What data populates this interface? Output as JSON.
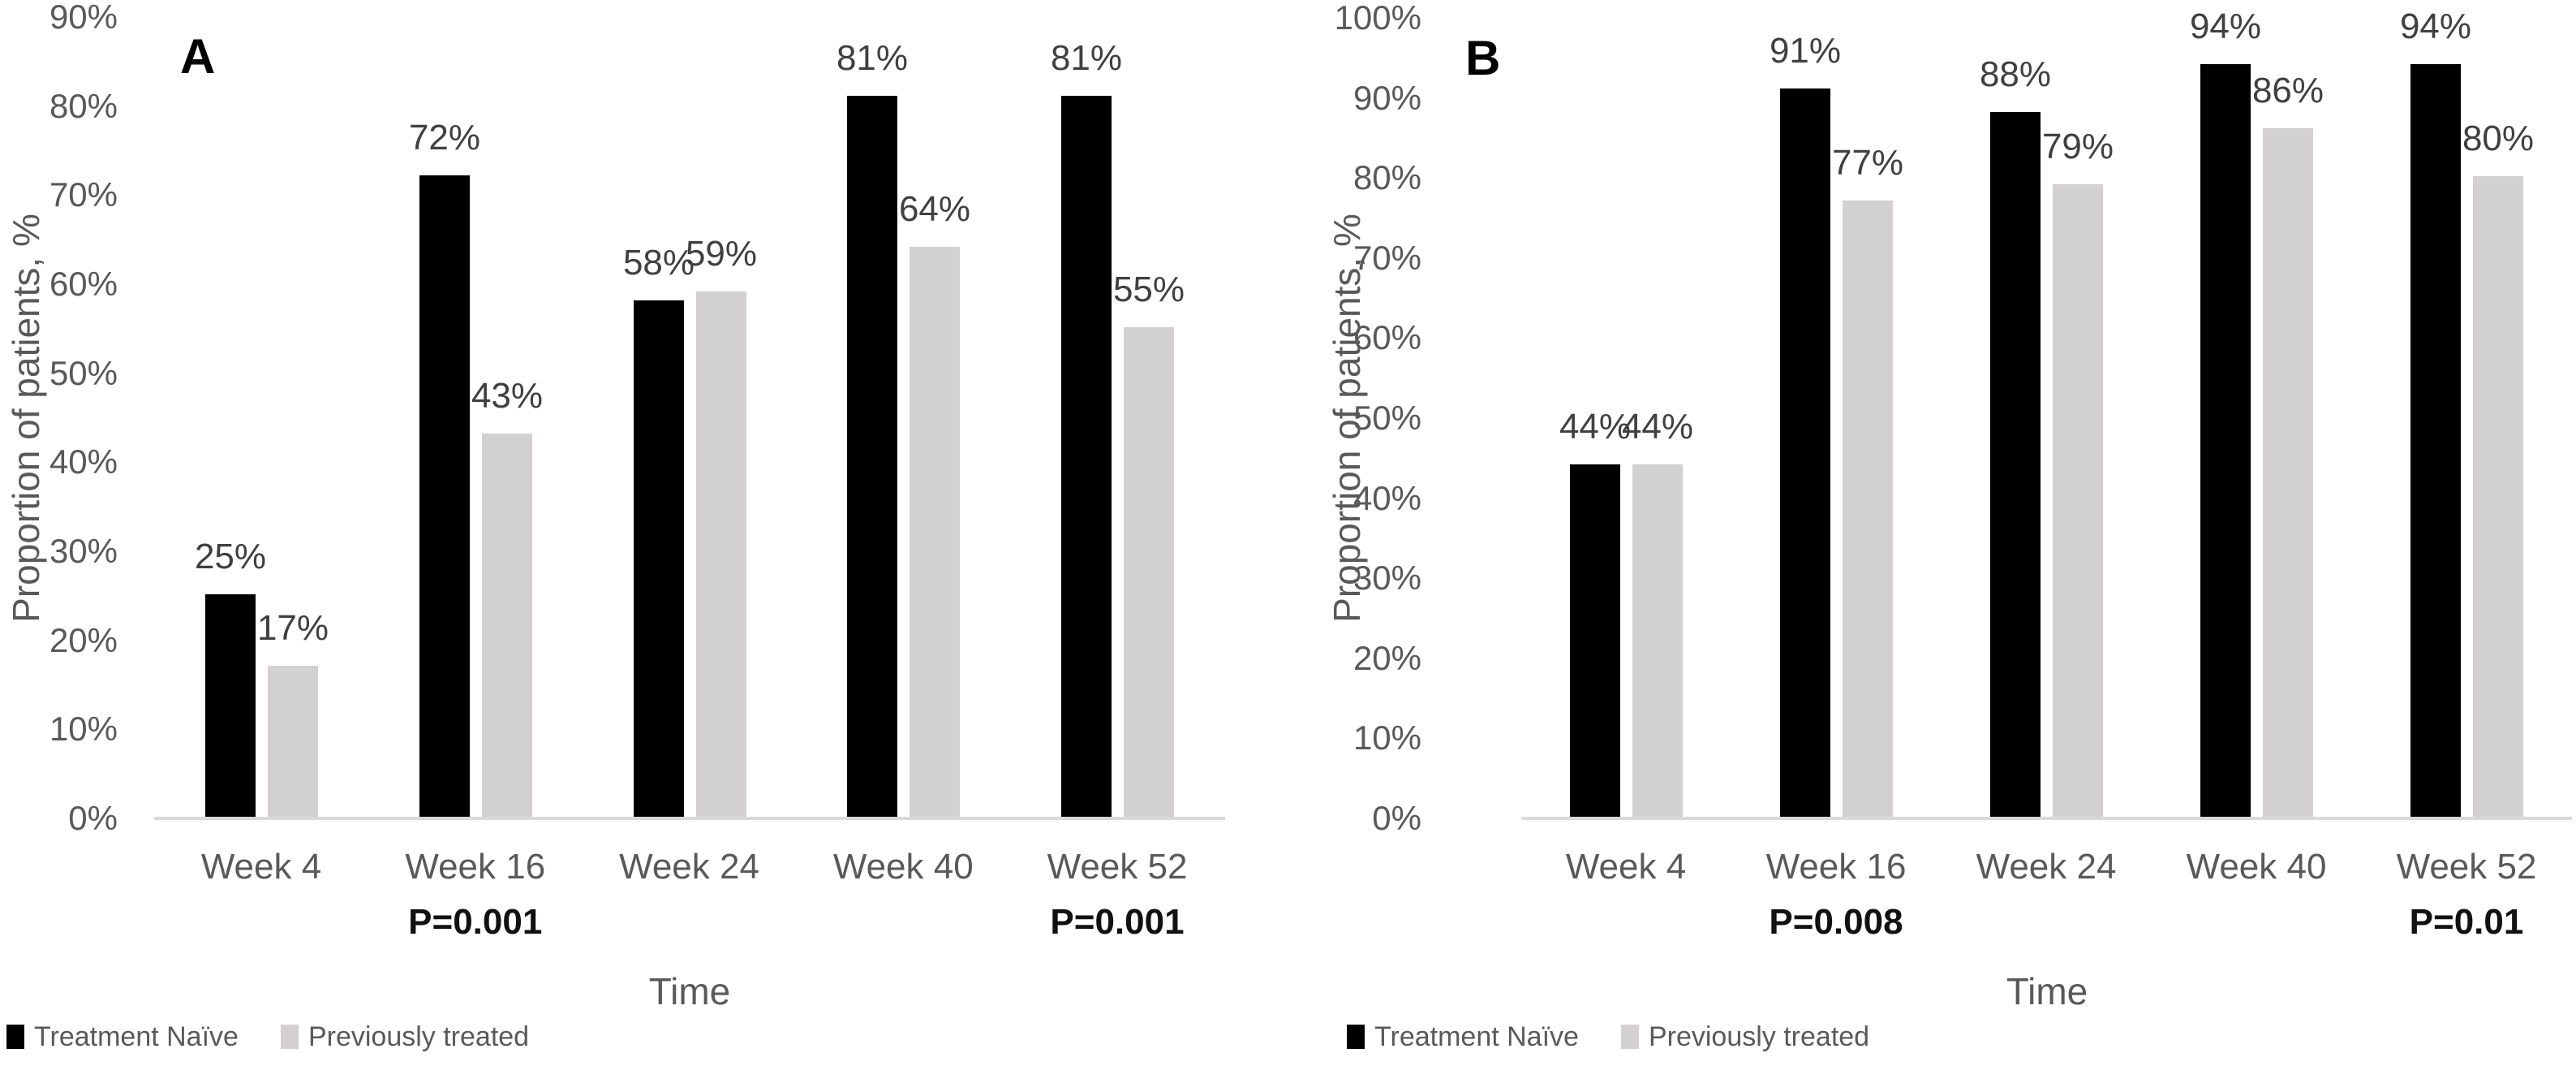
{
  "figure": {
    "background": "#ffffff",
    "axis_line_color": "#d9d9d9",
    "text_colors": {
      "axis_text": "#595959",
      "data_label": "#404040",
      "p_value": "#111111",
      "panel_label": "#000000"
    },
    "legend": {
      "items": [
        {
          "label": "Treatment Naïve",
          "series": "treatment-naive",
          "color": "#000000"
        },
        {
          "label": "Previously treated",
          "series": "previously-treated",
          "color": "#d2d0d0"
        }
      ]
    }
  },
  "chart_data": [
    {
      "type": "bar",
      "panel_label": "A",
      "title": "",
      "xlabel": "Time",
      "ylabel": "Proportion of patients, %",
      "ylim": [
        0,
        90
      ],
      "ytick_step": 10,
      "ytick_suffix": "%",
      "grid": false,
      "legend_position": "bottom-left",
      "categories": [
        "Week 4",
        "Week 16",
        "Week 24",
        "Week 40",
        "Week 52"
      ],
      "series": [
        {
          "name": "Treatment Naïve",
          "color": "#000000",
          "values": [
            25,
            72,
            58,
            81,
            81
          ]
        },
        {
          "name": "Previously treated",
          "color": "#d2d0d0",
          "values": [
            17,
            43,
            59,
            64,
            55
          ]
        }
      ],
      "data_label_suffix": "%",
      "p_values": [
        {
          "category": "Week 16",
          "label": "P=0.001"
        },
        {
          "category": "Week 52",
          "label": "P=0.001"
        }
      ]
    },
    {
      "type": "bar",
      "panel_label": "B",
      "title": "",
      "xlabel": "Time",
      "ylabel": "Proportion of patients, %",
      "ylim": [
        0,
        100
      ],
      "ytick_step": 10,
      "ytick_suffix": "%",
      "grid": false,
      "legend_position": "bottom-left",
      "categories": [
        "Week 4",
        "Week 16",
        "Week 24",
        "Week 40",
        "Week 52"
      ],
      "series": [
        {
          "name": "Treatment Naïve",
          "color": "#000000",
          "values": [
            44,
            91,
            88,
            94,
            94
          ]
        },
        {
          "name": "Previously treated",
          "color": "#d2d0d0",
          "values": [
            44,
            77,
            79,
            86,
            80
          ]
        }
      ],
      "data_label_suffix": "%",
      "p_values": [
        {
          "category": "Week 16",
          "label": "P=0.008"
        },
        {
          "category": "Week 52",
          "label": "P=0.01"
        }
      ]
    }
  ]
}
